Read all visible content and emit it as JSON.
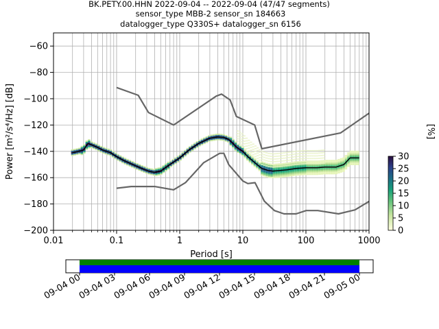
{
  "chart_data": {
    "type": "heatmap",
    "title_lines": [
      "BK.PETY.00.HHN   2022-09-04 -- 2022-09-04  (47/47 segments)",
      "sensor_type MBB-2 sensor_sn 184663",
      "datalogger_type Q330S+ datalogger_sn 6156"
    ],
    "xlabel": "Period [s]",
    "ylabel": "Power [m²/s⁴/Hz] [dB]",
    "x_scale": "log",
    "xlim": [
      0.01,
      1000
    ],
    "ylim": [
      -200,
      -50
    ],
    "x_tick_labels": [
      "0.01",
      "0.1",
      "1",
      "10",
      "100",
      "1000"
    ],
    "y_ticks": [
      -60,
      -80,
      -100,
      -120,
      -140,
      -160,
      -180,
      -200
    ],
    "grid": true,
    "colorbar": {
      "label": "[%]",
      "range": [
        0,
        30
      ],
      "ticks": [
        0,
        5,
        10,
        15,
        20,
        25,
        30
      ]
    },
    "series": [
      {
        "name": "",
        "role": "noise model, high",
        "color": "#666666",
        "x": [
          0.1,
          0.22,
          0.32,
          0.8,
          3.8,
          4.6,
          6.3,
          7.9,
          15.4,
          20,
          354.8,
          1000
        ],
        "y": [
          -91.5,
          -97.4,
          -110.5,
          -120,
          -98,
          -96.5,
          -101,
          -113.5,
          -120,
          -138,
          -126,
          -111
        ]
      },
      {
        "name": "",
        "role": "noise model, low",
        "color": "#666666",
        "x": [
          0.1,
          0.17,
          0.4,
          0.8,
          1.24,
          2.4,
          4.3,
          5,
          6,
          10,
          12,
          15.6,
          21.9,
          31.6,
          45,
          70,
          101,
          154,
          328,
          600,
          1000
        ],
        "y": [
          -168,
          -166.7,
          -166.7,
          -169.2,
          -163.7,
          -148.6,
          -141.5,
          -141.5,
          -150.2,
          -162.5,
          -164.5,
          -163.8,
          -177.8,
          -185,
          -187.5,
          -187.5,
          -185,
          -185,
          -187.5,
          -184.5,
          -178
        ]
      },
      {
        "name": "",
        "role": "mean",
        "color": "#000000",
        "x": [
          0.02,
          0.025,
          0.03,
          0.035,
          0.04,
          0.05,
          0.06,
          0.08,
          0.1,
          0.13,
          0.18,
          0.25,
          0.32,
          0.4,
          0.5,
          0.7,
          1,
          1.4,
          2,
          3,
          4,
          5,
          6,
          7,
          8,
          10,
          12,
          15,
          20,
          25,
          30,
          40,
          50,
          70,
          100,
          150,
          200,
          300,
          400,
          500,
          600,
          700
        ],
        "y": [
          -141,
          -140,
          -139,
          -134,
          -135,
          -137,
          -139,
          -141,
          -144,
          -147,
          -150,
          -153,
          -155,
          -156,
          -155,
          -150,
          -145,
          -139,
          -134,
          -130,
          -129,
          -129.5,
          -131,
          -134,
          -137,
          -140,
          -144,
          -148,
          -153,
          -154.5,
          -155,
          -154.5,
          -154,
          -153,
          -152.5,
          -152.5,
          -152,
          -152,
          -150,
          -145,
          -145,
          -145
        ]
      }
    ],
    "timeline": {
      "tick_labels": [
        "09-04 00",
        "09-04 03",
        "09-04 06",
        "09-04 09",
        "09-04 12",
        "09-04 15",
        "09-04 18",
        "09-04 21",
        "09-05 00"
      ],
      "coverage_colors": [
        "#008000",
        "#0000ff"
      ]
    }
  }
}
